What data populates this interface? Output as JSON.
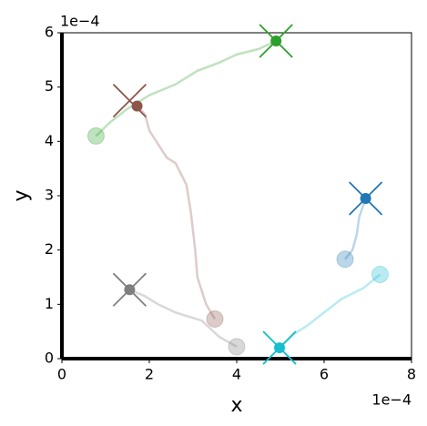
{
  "chart_data": {
    "type": "trajectory",
    "xlabel": "x",
    "ylabel": "y",
    "x_offset_label": "1e−4",
    "y_offset_label": "1e−4",
    "xlim": [
      0,
      8
    ],
    "xticks": [
      0,
      2,
      4,
      6,
      8
    ],
    "ylim": [
      0,
      6
    ],
    "yticks": [
      0,
      1,
      2,
      3,
      4,
      5,
      6
    ],
    "series": [
      {
        "color": "#2ca02c",
        "x": [
          0.78,
          1.1,
          1.5,
          2.0,
          2.6,
          3.1,
          3.6,
          4.0,
          4.5,
          4.9
        ],
        "y": [
          4.1,
          4.35,
          4.6,
          4.85,
          5.05,
          5.3,
          5.45,
          5.6,
          5.7,
          5.85
        ],
        "target_x": 4.9,
        "target_y": 5.85
      },
      {
        "color": "#8c564b",
        "x": [
          3.5,
          3.3,
          3.1,
          3.05,
          2.95,
          2.85,
          2.6,
          2.4,
          2.0,
          1.9,
          1.72
        ],
        "y": [
          0.73,
          1.0,
          1.5,
          2.0,
          2.7,
          3.2,
          3.6,
          3.7,
          4.2,
          4.5,
          4.65
        ],
        "target_x": 1.55,
        "target_y": 4.75
      },
      {
        "color": "#7f7f7f",
        "x": [
          4.0,
          3.6,
          3.2,
          2.6,
          2.2,
          1.9,
          1.55
        ],
        "y": [
          0.22,
          0.4,
          0.7,
          0.85,
          1.0,
          1.15,
          1.27
        ],
        "target_x": 1.55,
        "target_y": 1.27
      },
      {
        "color": "#1f77b4",
        "x": [
          6.48,
          6.65,
          6.75,
          6.8,
          6.95
        ],
        "y": [
          1.83,
          2.0,
          2.3,
          2.6,
          2.95
        ],
        "target_x": 6.95,
        "target_y": 2.95
      },
      {
        "color": "#17becf",
        "x": [
          7.28,
          6.9,
          6.4,
          6.0,
          5.6,
          5.3,
          4.98
        ],
        "y": [
          1.55,
          1.3,
          1.1,
          0.85,
          0.6,
          0.45,
          0.2
        ],
        "target_x": 4.98,
        "target_y": 0.2
      }
    ]
  }
}
